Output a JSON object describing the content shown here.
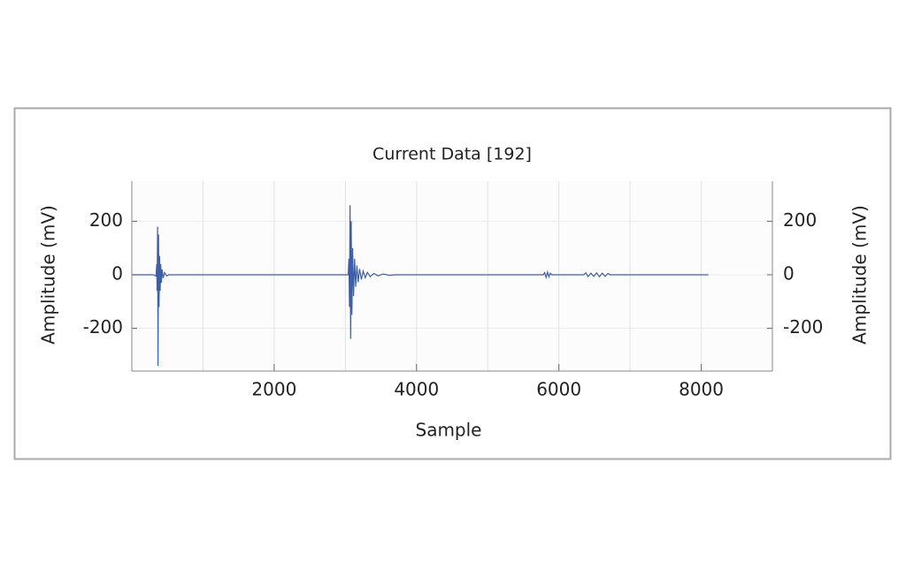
{
  "chart_data": {
    "type": "line",
    "title": "Current Data [192]",
    "x_label": "Sample",
    "y_label": "Amplitude (mV)",
    "x": [
      0,
      300,
      340,
      350,
      355,
      362,
      368,
      375,
      382,
      390,
      398,
      406,
      415,
      425,
      440,
      460,
      490,
      520,
      3000,
      3040,
      3050,
      3058,
      3066,
      3074,
      3082,
      3092,
      3102,
      3115,
      3130,
      3145,
      3162,
      3180,
      3200,
      3225,
      3250,
      3280,
      3310,
      3350,
      3400,
      3460,
      3530,
      3620,
      3700,
      5780,
      5800,
      5820,
      5840,
      5860,
      5880,
      5900,
      6350,
      6380,
      6410,
      6450,
      6490,
      6530,
      6570,
      6610,
      6650,
      6690,
      6720,
      8100
    ],
    "series": [
      {
        "color": "#3d5ea8",
        "values": [
          0,
          0,
          -5,
          40,
          -60,
          180,
          -340,
          150,
          -120,
          70,
          -60,
          40,
          -30,
          20,
          -12,
          8,
          -4,
          0,
          0,
          0,
          60,
          -120,
          260,
          -240,
          200,
          -150,
          100,
          -80,
          60,
          -45,
          35,
          -28,
          22,
          -18,
          14,
          -11,
          9,
          -7,
          5,
          -4,
          3,
          -2,
          0,
          0,
          8,
          -10,
          10,
          -8,
          6,
          0,
          0,
          7,
          -7,
          6,
          -6,
          7,
          -7,
          6,
          -6,
          5,
          0,
          0
        ]
      }
    ],
    "xlim": [
      0,
      9000
    ],
    "ylim": [
      -360,
      350
    ],
    "xticks": [
      2000,
      4000,
      6000,
      8000
    ],
    "yticks": [
      -200,
      0,
      200
    ],
    "x_minor_grid": [
      1000,
      3000,
      5000,
      7000
    ],
    "grid": true,
    "mirror_y_axis": true
  }
}
